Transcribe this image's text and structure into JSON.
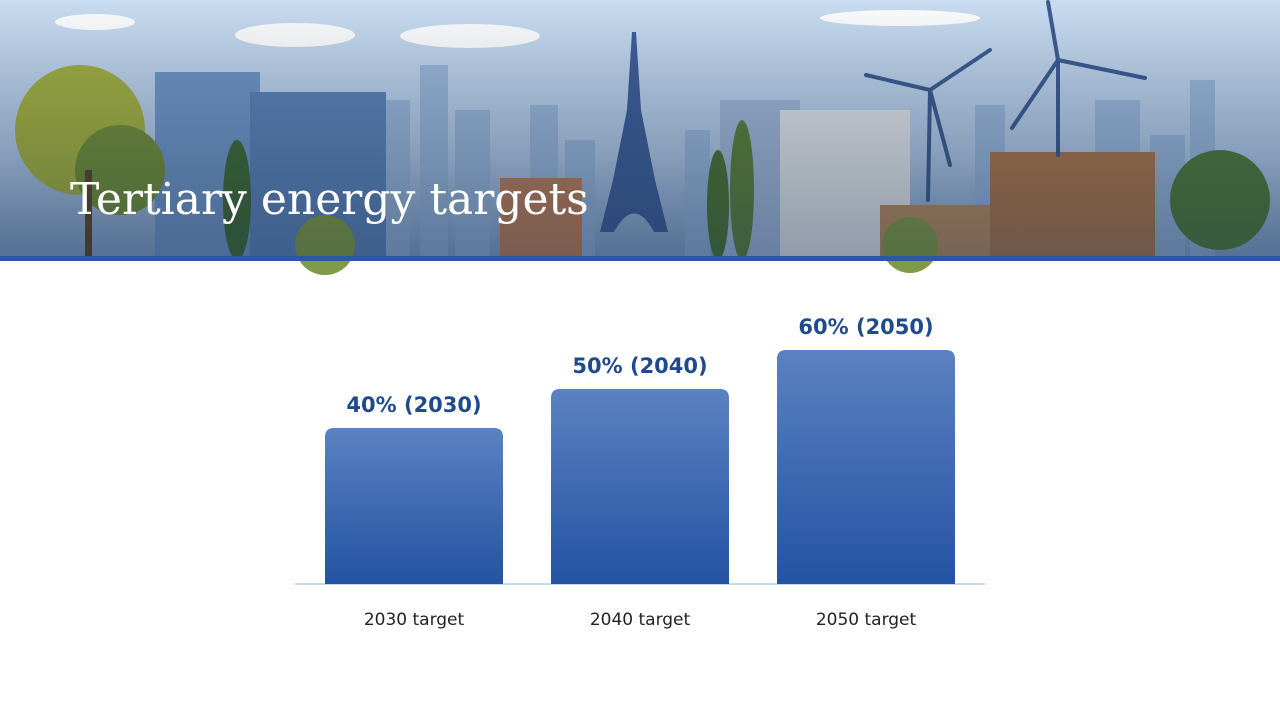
{
  "chart_data": {
    "type": "bar",
    "title": "Tertiary energy targets",
    "categories": [
      "2030 target",
      "2040 target",
      "2050 target"
    ],
    "values": [
      40,
      50,
      60
    ],
    "value_labels": [
      "40% (2030)",
      "50% (2040)",
      "60% (2050)"
    ],
    "color": "#2a58a6"
  }
}
